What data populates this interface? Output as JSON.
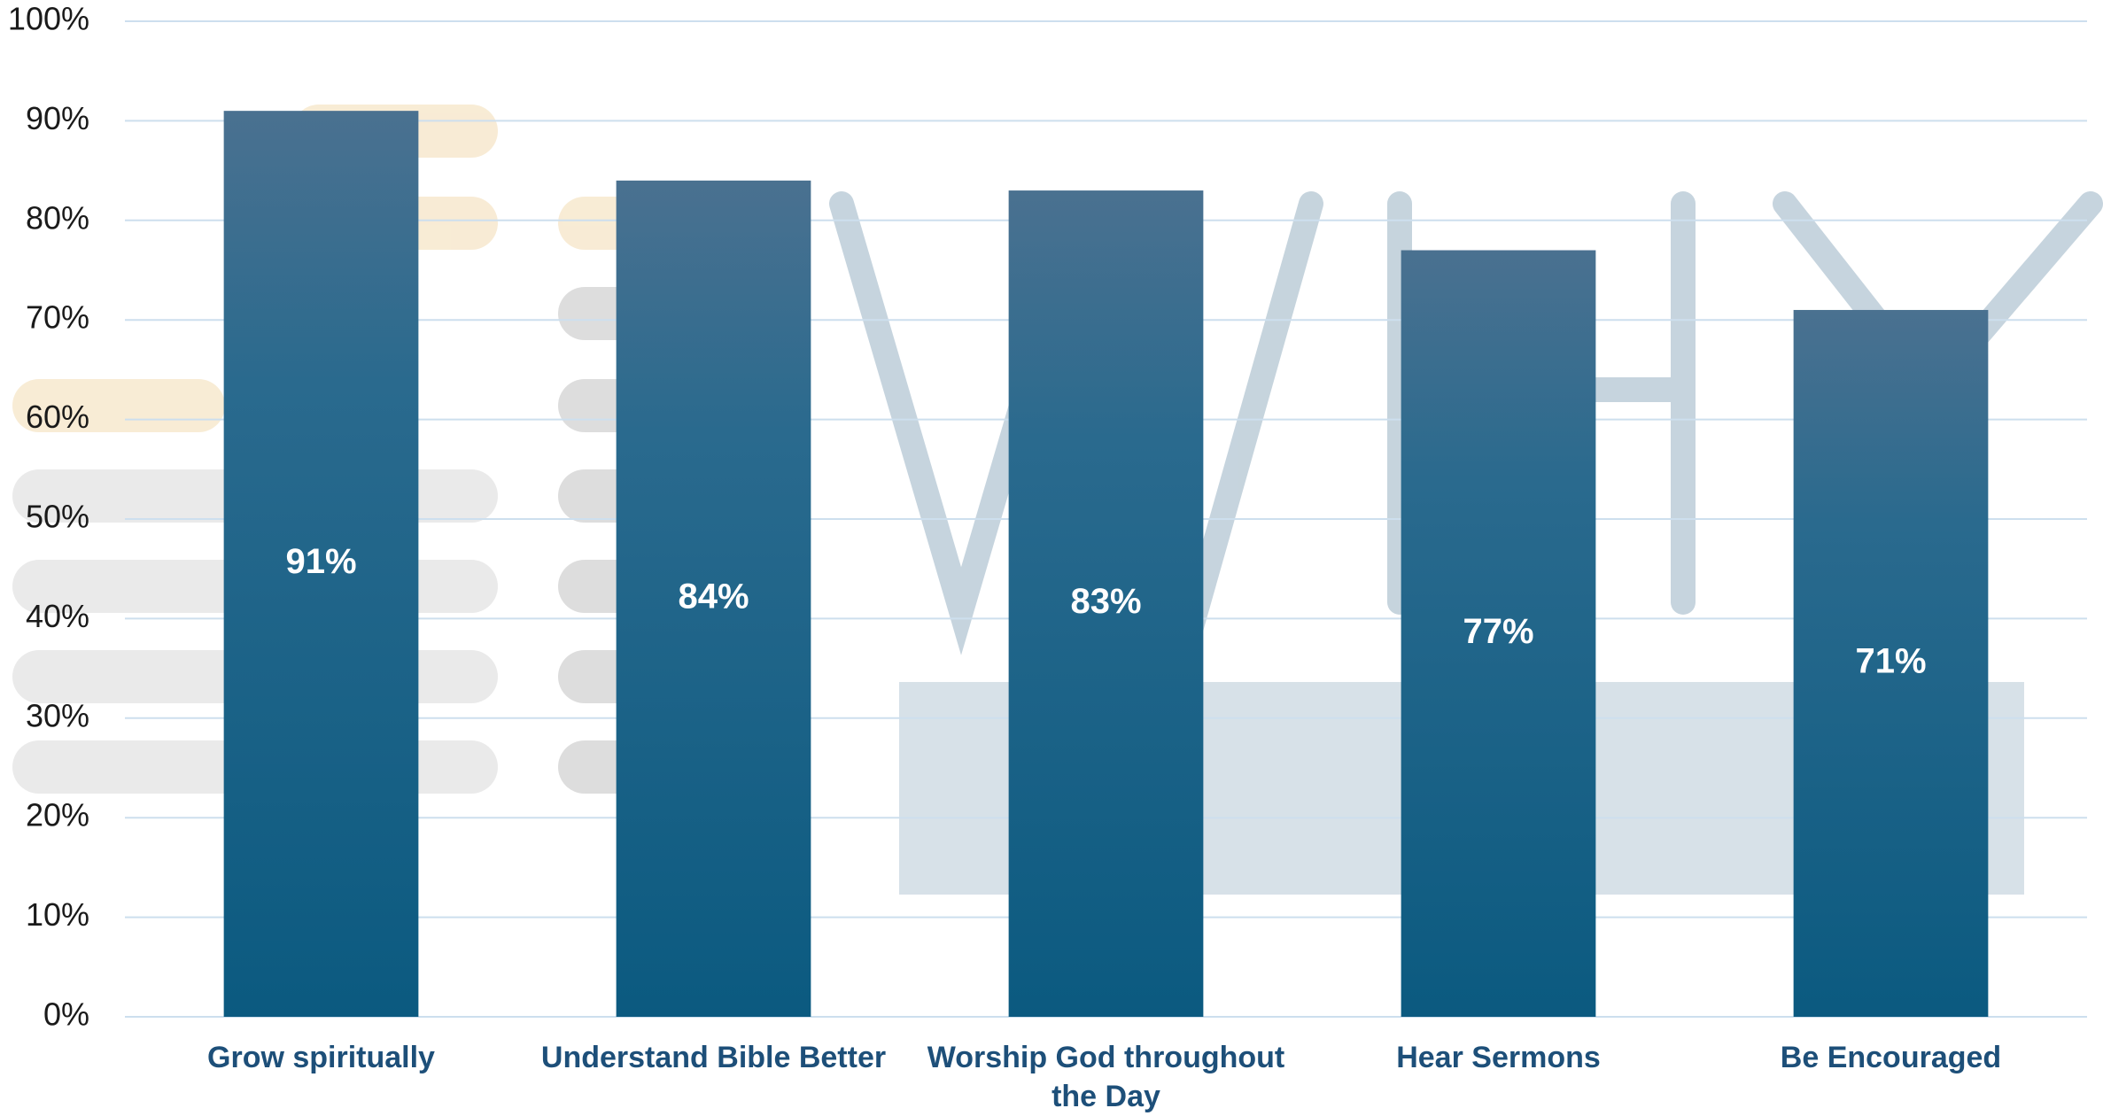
{
  "chart_data": {
    "type": "bar",
    "categories": [
      "Grow spiritually",
      "Understand Bible Better",
      "Worship God throughout the Day",
      "Hear Sermons",
      "Be Encouraged"
    ],
    "values": [
      91,
      84,
      83,
      77,
      71
    ],
    "value_labels": [
      "91%",
      "84%",
      "83%",
      "77%",
      "71%"
    ],
    "color": "#0b5a80",
    "ylim": [
      0,
      100
    ],
    "yticks": [
      {
        "value": 0,
        "label": "0%"
      },
      {
        "value": 10,
        "label": "10%"
      },
      {
        "value": 20,
        "label": "20%"
      },
      {
        "value": 30,
        "label": "30%"
      },
      {
        "value": 40,
        "label": "40%"
      },
      {
        "value": 50,
        "label": "50%"
      },
      {
        "value": 60,
        "label": "60%"
      },
      {
        "value": 70,
        "label": "70%"
      },
      {
        "value": 80,
        "label": "80%"
      },
      {
        "value": 90,
        "label": "90%"
      },
      {
        "value": 100,
        "label": "100%"
      }
    ],
    "grid": true
  }
}
